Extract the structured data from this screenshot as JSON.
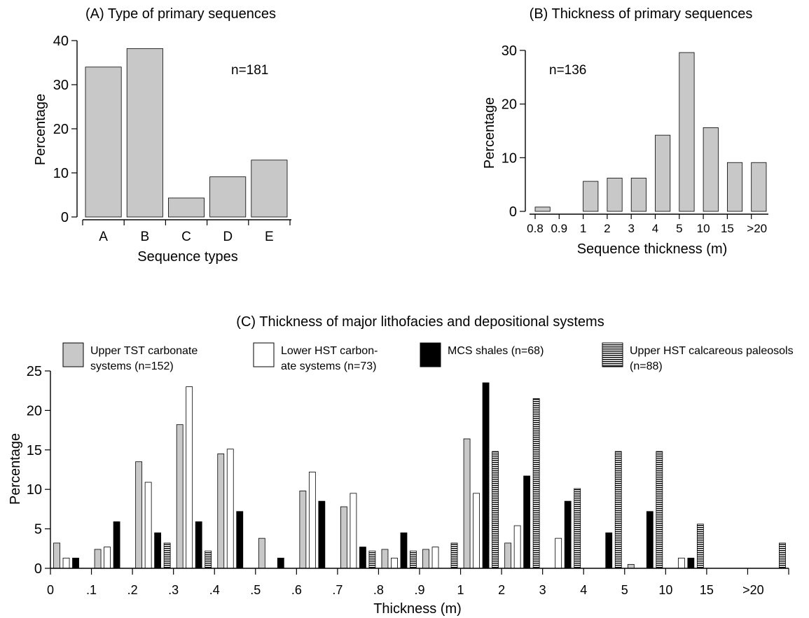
{
  "colors": {
    "gray": "#c8c8c8",
    "white": "#ffffff",
    "black": "#000000",
    "stroke": "#000000"
  },
  "chart_data": [
    {
      "id": "A",
      "type": "bar",
      "title": "(A) Type of primary sequences",
      "xlabel": "Sequence types",
      "ylabel": "Percentage",
      "annotation": "n=181",
      "categories": [
        "A",
        "B",
        "C",
        "D",
        "E"
      ],
      "values": [
        34,
        38.2,
        4.3,
        9.1,
        12.9
      ],
      "yticks": [
        "0",
        "10",
        "20",
        "30",
        "40"
      ],
      "ylim": [
        0,
        40
      ],
      "grid": false
    },
    {
      "id": "B",
      "type": "bar",
      "title": "(B) Thickness of primary sequences",
      "xlabel": "Sequence thickness (m)",
      "ylabel": "Percentage",
      "annotation": "n=136",
      "categories": [
        "0.8-0.9",
        "0.9-1",
        "1-2",
        "2-3",
        "3-4",
        "4-5",
        "5-10",
        "10-15",
        "15-20",
        ">20"
      ],
      "values": [
        0.8,
        0,
        5.6,
        6.2,
        6.2,
        14.2,
        29.6,
        15.6,
        9.1,
        9.1
      ],
      "xtick_labels": [
        "0.8",
        "0.9",
        "1",
        "2",
        "3",
        "4",
        "5",
        "10",
        "15",
        ">20"
      ],
      "yticks": [
        "0",
        "10",
        "20",
        "30"
      ],
      "ylim": [
        0,
        30
      ],
      "grid": false
    },
    {
      "id": "C",
      "type": "bar",
      "title": "(C) Thickness of major lithofacies and depositional systems",
      "xlabel": "Thickness (m)",
      "ylabel": "Percentage",
      "xtick_labels": [
        "0",
        ".1",
        ".2",
        ".3",
        ".4",
        ".5",
        ".6",
        ".7",
        ".8",
        ".9",
        "1",
        "2",
        "3",
        "4",
        "5",
        "10",
        "15",
        ">20"
      ],
      "yticks": [
        "0",
        "5",
        "10",
        "15",
        "20",
        "25"
      ],
      "ylim": [
        0,
        25
      ],
      "grid": false,
      "legend_placement": "top",
      "categories": [
        "0-.1",
        ".1-.2",
        ".2-.3",
        ".3-.4",
        ".4-.5",
        ".5-.6",
        ".6-.7",
        ".7-.8",
        ".8-.9",
        ".9-1",
        "1-2",
        "2-3",
        "3-4",
        "4-5",
        "5-10",
        "10-15",
        "15-20",
        ">20"
      ],
      "series": [
        {
          "name": "Upper TST carbonate systems (n=152)",
          "legend_lines": [
            "Upper TST carbonate",
            "systems (n=152)"
          ],
          "style": "gray",
          "values": [
            3.2,
            2.4,
            13.5,
            18.2,
            14.5,
            3.8,
            9.8,
            7.8,
            2.4,
            2.4,
            16.4,
            3.2,
            0,
            0,
            0.5,
            0,
            0,
            0
          ]
        },
        {
          "name": "Lower HST carbonate systems (n=73)",
          "legend_lines": [
            "Lower HST carbon-",
            "ate systems (n=73)"
          ],
          "style": "white",
          "values": [
            1.3,
            2.7,
            10.9,
            23,
            15.1,
            0,
            12.2,
            9.5,
            1.3,
            2.7,
            9.5,
            5.4,
            3.8,
            0,
            0,
            1.3,
            0,
            0
          ]
        },
        {
          "name": "MCS shales (n=68)",
          "legend_lines": [
            "MCS shales (n=68)"
          ],
          "style": "black",
          "values": [
            1.3,
            5.9,
            4.5,
            5.9,
            7.2,
            1.3,
            8.5,
            2.7,
            4.5,
            0,
            23.5,
            11.7,
            8.5,
            4.5,
            7.2,
            1.3,
            0,
            0
          ]
        },
        {
          "name": "Upper HST calcareous paleosols (n=88)",
          "legend_lines": [
            "Upper HST calcareous paleosols",
            "(n=88)"
          ],
          "style": "hatch",
          "values": [
            0,
            0,
            3.2,
            2.2,
            0,
            0,
            0,
            2.2,
            2.2,
            3.2,
            14.8,
            21.5,
            10.1,
            14.8,
            14.8,
            5.6,
            0,
            3.2
          ]
        }
      ]
    }
  ]
}
